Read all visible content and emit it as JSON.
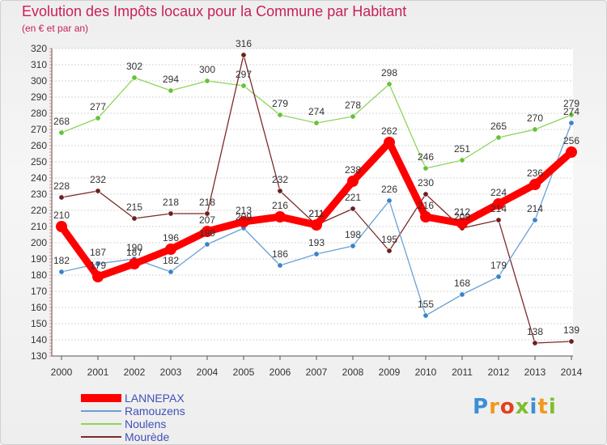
{
  "chart_data": {
    "type": "line",
    "title": "Evolution des Impôts locaux pour la Commune par Habitant",
    "subtitle": "(en € et par an)",
    "xlabel": "",
    "ylabel": "",
    "ylim": [
      130,
      320
    ],
    "yticks": [
      130,
      140,
      150,
      160,
      170,
      180,
      190,
      200,
      210,
      220,
      230,
      240,
      250,
      260,
      270,
      280,
      290,
      300,
      310,
      320
    ],
    "categories": [
      "2000",
      "2001",
      "2002",
      "2003",
      "2004",
      "2005",
      "2006",
      "2007",
      "2008",
      "2009",
      "2010",
      "2011",
      "2012",
      "2013",
      "2014"
    ],
    "grid": true,
    "legend_position": "bottom-left",
    "series": [
      {
        "name": "Noulens",
        "color": "#8fd45a",
        "marker": "#66c23a",
        "values": [
          268,
          277,
          302,
          294,
          300,
          297,
          279,
          274,
          278,
          298,
          246,
          251,
          265,
          270,
          279
        ]
      },
      {
        "name": "Mourède",
        "color": "#7a2a2a",
        "marker": "#6b1f1f",
        "values": [
          228,
          232,
          215,
          218,
          218,
          316,
          232,
          211,
          221,
          195,
          230,
          209,
          214,
          138,
          139
        ]
      },
      {
        "name": "Ramouzens",
        "color": "#6aa0d4",
        "marker": "#3a83cc",
        "values": [
          182,
          187,
          190,
          182,
          199,
          209,
          186,
          193,
          198,
          226,
          155,
          168,
          179,
          214,
          274
        ]
      },
      {
        "name": "LANNEPAX",
        "color": "#ff0000",
        "marker": "#ff0000",
        "values": [
          210,
          179,
          187,
          196,
          207,
          213,
          216,
          211,
          238,
          262,
          216,
          212,
          224,
          236,
          256
        ]
      }
    ],
    "legend": [
      "LANNEPAX",
      "Ramouzens",
      "Noulens",
      "Mourède"
    ]
  },
  "logo": {
    "letters": [
      "P",
      "r",
      "o",
      "x",
      "i",
      "t",
      "i"
    ]
  }
}
